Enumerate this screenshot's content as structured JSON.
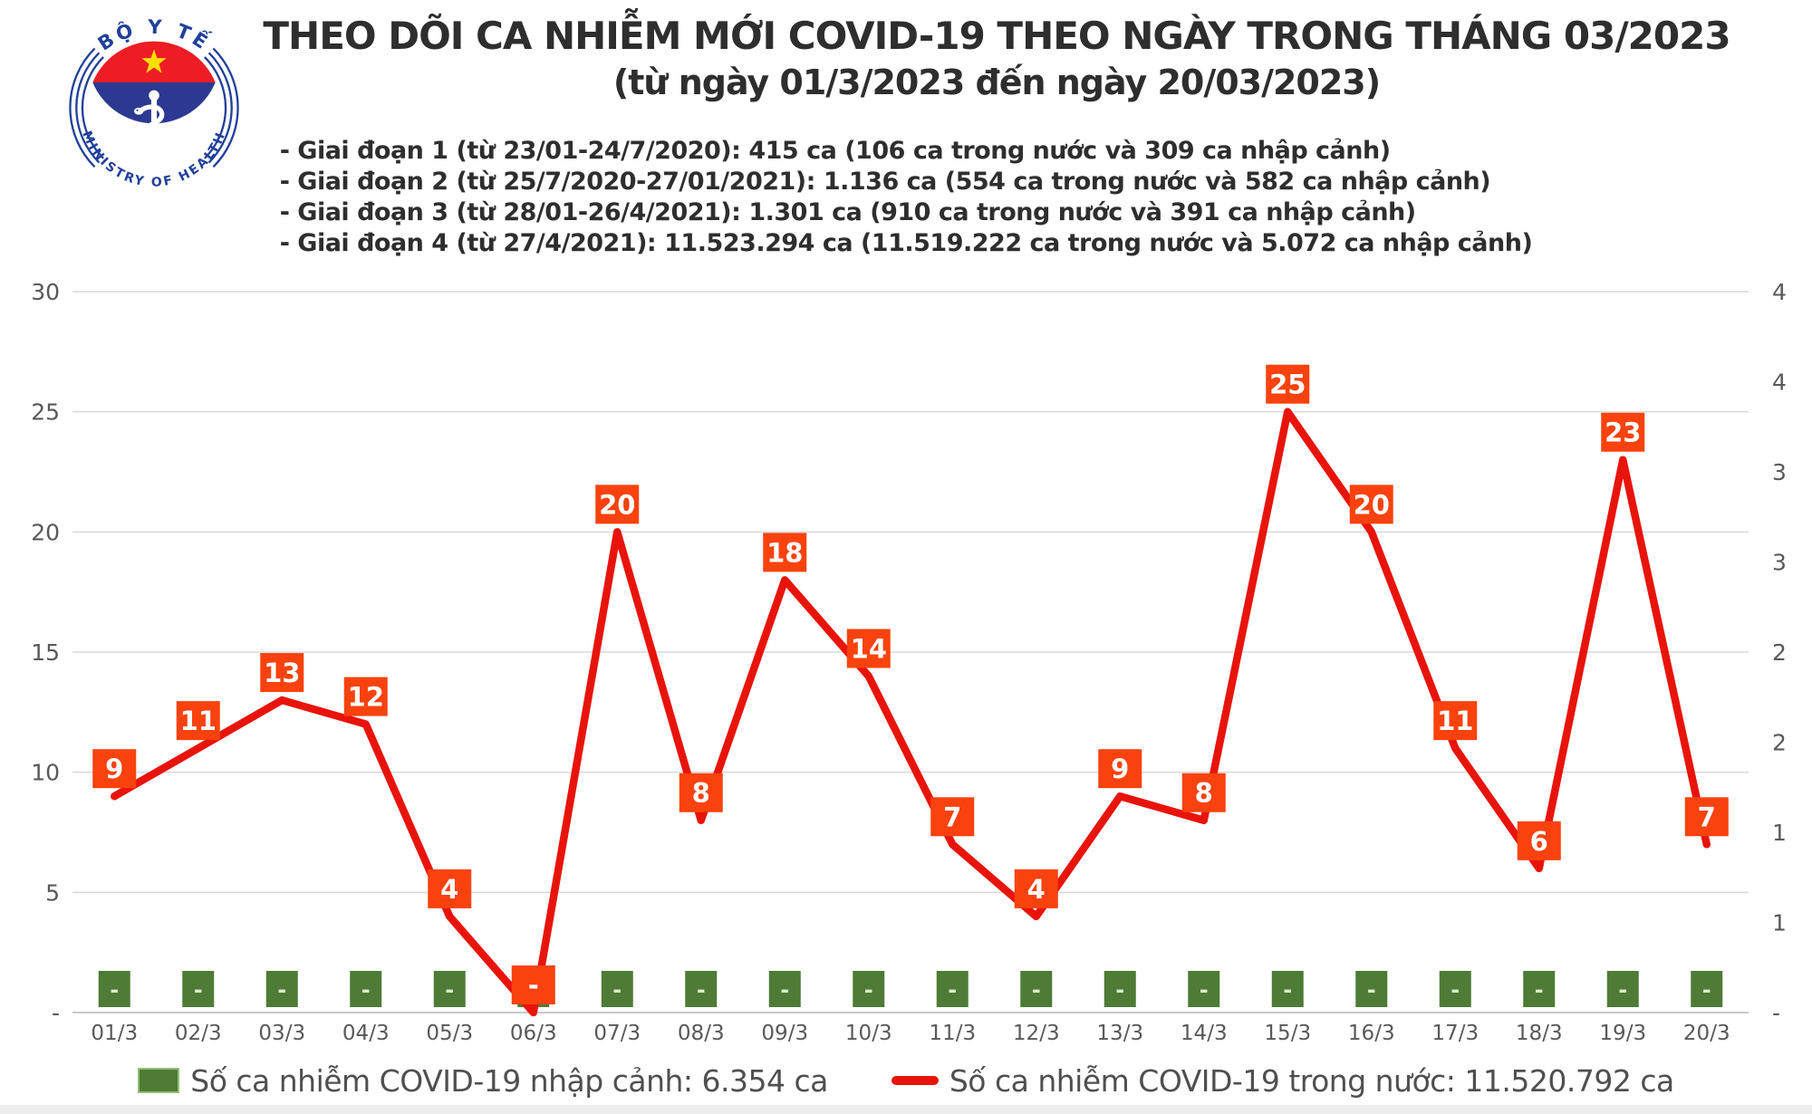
{
  "logo": {
    "top_text": "BỘ Y TẾ",
    "bottom_text": "MINISTRY OF HEALTH",
    "colors": {
      "red": "#ee1c25",
      "blue": "#2b3990",
      "star": "#ffde00",
      "text": "#21409a"
    }
  },
  "chart_data": {
    "type": "combo-line-bar",
    "title": "THEO DÕI CA NHIỄM MỚI COVID-19 THEO NGÀY TRONG THÁNG 03/2023",
    "subtitle": "(từ ngày 01/3/2023 đến ngày 20/03/2023)",
    "notes": [
      "- Giai đoạn 1 (từ 23/01-24/7/2020): 415 ca (106 ca trong nước và 309 ca nhập cảnh)",
      "- Giai đoạn 2 (từ 25/7/2020-27/01/2021): 1.136 ca (554 ca trong nước và 582 ca nhập cảnh)",
      "- Giai đoạn 3 (từ 28/01-26/4/2021): 1.301 ca (910 ca trong nước và 391 ca nhập cảnh)",
      "- Giai đoạn 4 (từ 27/4/2021): 11.523.294 ca (11.519.222 ca trong nước và 5.072 ca nhập cảnh)"
    ],
    "categories": [
      "01/3",
      "02/3",
      "03/3",
      "04/3",
      "05/3",
      "06/3",
      "07/3",
      "08/3",
      "09/3",
      "10/3",
      "11/3",
      "12/3",
      "13/3",
      "14/3",
      "15/3",
      "16/3",
      "17/3",
      "18/3",
      "19/3",
      "20/3"
    ],
    "series": [
      {
        "name": "Số ca nhiễm COVID-19 trong nước",
        "type": "line",
        "color": "#e8140c",
        "label_bg": "#f9420e",
        "values": [
          9,
          11,
          13,
          12,
          4,
          0,
          20,
          8,
          18,
          14,
          7,
          4,
          9,
          8,
          25,
          20,
          11,
          6,
          23,
          7
        ],
        "labels": [
          "9",
          "11",
          "13",
          "12",
          "4",
          "-",
          "20",
          "8",
          "18",
          "14",
          "7",
          "4",
          "9",
          "8",
          "25",
          "20",
          "11",
          "6",
          "23",
          "7"
        ]
      },
      {
        "name": "Số ca nhiễm COVID-19 nhập cảnh",
        "type": "bar",
        "color": "#4e7b35",
        "values": [
          0,
          0,
          0,
          0,
          0,
          0,
          0,
          0,
          0,
          0,
          0,
          0,
          0,
          0,
          0,
          0,
          0,
          0,
          0,
          0
        ],
        "labels": [
          "-",
          "-",
          "-",
          "-",
          "-",
          "-",
          "-",
          "-",
          "-",
          "-",
          "-",
          "-",
          "-",
          "-",
          "-",
          "-",
          "-",
          "-",
          "-",
          "-"
        ]
      }
    ],
    "left_axis": {
      "min": 0,
      "max": 30,
      "step": 5,
      "ticks": [
        "30",
        "25",
        "20",
        "15",
        "10",
        "5",
        "-"
      ]
    },
    "right_axis": {
      "ticks": [
        "4",
        "4",
        "3",
        "3",
        "2",
        "2",
        "1",
        "1",
        "-"
      ]
    },
    "gridline_color": "#d9d9d9",
    "axisline_color": "#c9c9c9",
    "legend": [
      {
        "swatch": "green-square",
        "label": "Số ca nhiễm COVID-19 nhập cảnh: 6.354 ca"
      },
      {
        "swatch": "red-line",
        "label": "Số ca nhiễm COVID-19 trong nước: 11.520.792 ca"
      }
    ]
  }
}
